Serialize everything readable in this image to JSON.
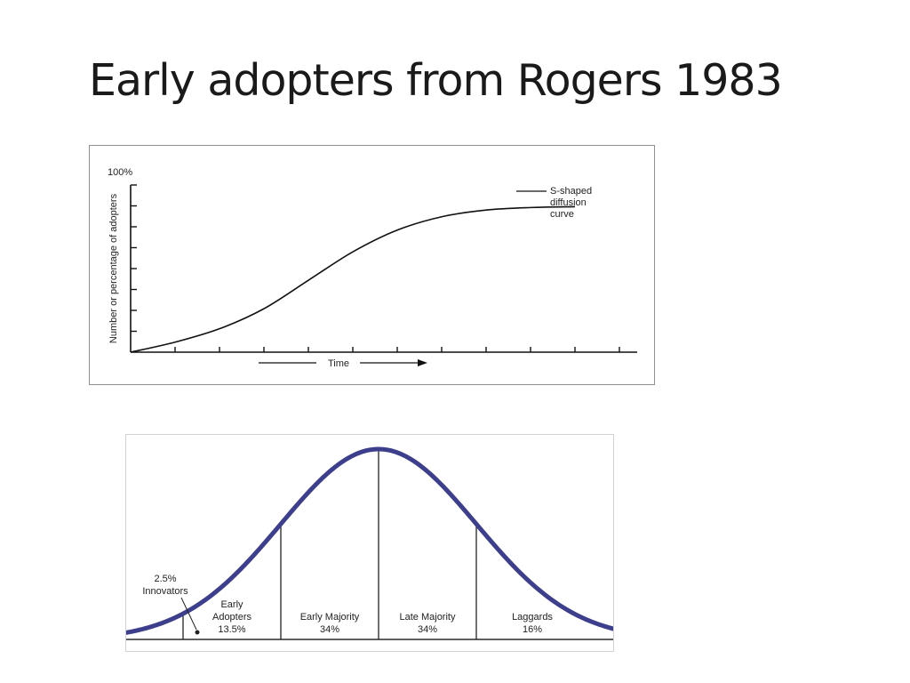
{
  "slide": {
    "title": "Early adopters from Rogers 1983"
  },
  "chart_data": [
    {
      "type": "line",
      "ylabel": "Number or percentage of adopters",
      "xlabel": "Time",
      "y_top_label": "100%",
      "ylim": [
        0,
        100
      ],
      "xlim": [
        0,
        11
      ],
      "x_ticks": [
        1,
        2,
        3,
        4,
        5,
        6,
        7,
        8,
        9,
        10,
        11
      ],
      "y_ticks": [
        12.5,
        25,
        37.5,
        50,
        62.5,
        75,
        87.5,
        100
      ],
      "grid": false,
      "annotation": [
        "S-shaped",
        "diffusion",
        "curve"
      ],
      "series": [
        {
          "x": [
            0,
            1,
            2,
            3,
            4,
            5,
            6,
            7,
            8,
            9,
            10
          ],
          "values": [
            0,
            6,
            14,
            26,
            43,
            60,
            73,
            81,
            85,
            86.5,
            87
          ]
        }
      ]
    },
    {
      "type": "area",
      "shape": "normal-distribution",
      "x_boundaries_sd": [
        -2,
        -1,
        0,
        1
      ],
      "segments": [
        {
          "label_lines": [
            "2.5%",
            "Innovators"
          ],
          "percent": 2.5
        },
        {
          "label_lines": [
            "Early",
            "Adopters",
            "13.5%"
          ],
          "percent": 13.5
        },
        {
          "label_lines": [
            "Early Majority",
            "34%"
          ],
          "percent": 34
        },
        {
          "label_lines": [
            "Late Majority",
            "34%"
          ],
          "percent": 34
        },
        {
          "label_lines": [
            "Laggards",
            "16%"
          ],
          "percent": 16
        }
      ],
      "colors": {
        "curve": "#3d3f8c",
        "divider": "#222222"
      }
    }
  ]
}
